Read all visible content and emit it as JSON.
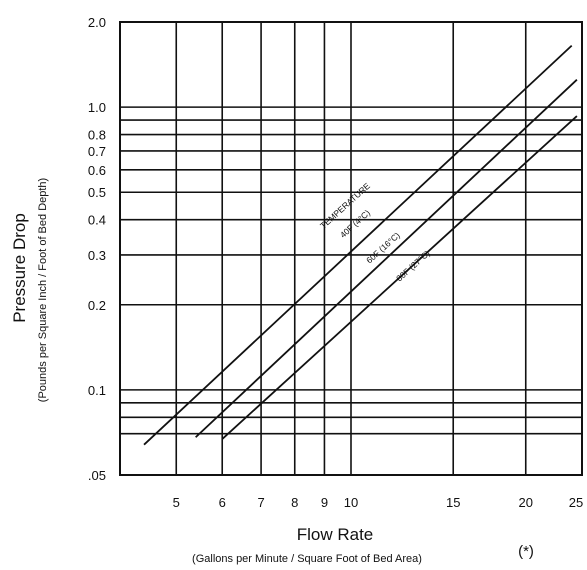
{
  "chart_data": {
    "type": "line",
    "x_scale": "log",
    "y_scale": "log",
    "xlim": [
      4,
      25
    ],
    "ylim": [
      0.05,
      2.0
    ],
    "x_ticks": [
      {
        "v": 5,
        "label": "5"
      },
      {
        "v": 6,
        "label": "6"
      },
      {
        "v": 7,
        "label": "7"
      },
      {
        "v": 8,
        "label": "8"
      },
      {
        "v": 9,
        "label": "9"
      },
      {
        "v": 10,
        "label": "10"
      },
      {
        "v": 15,
        "label": "15"
      },
      {
        "v": 20,
        "label": "20"
      },
      {
        "v": 25,
        "label": "25"
      }
    ],
    "y_ticks": [
      {
        "v": 0.05,
        "label": ".05"
      },
      {
        "v": 0.1,
        "label": "0.1"
      },
      {
        "v": 0.2,
        "label": "0.2"
      },
      {
        "v": 0.3,
        "label": "0.3"
      },
      {
        "v": 0.4,
        "label": "0.4"
      },
      {
        "v": 0.5,
        "label": "0.5"
      },
      {
        "v": 0.6,
        "label": "0.6"
      },
      {
        "v": 0.7,
        "label": "0.7"
      },
      {
        "v": 0.8,
        "label": "0.8"
      },
      {
        "v": 1.0,
        "label": "1.0"
      },
      {
        "v": 2.0,
        "label": "2.0"
      }
    ],
    "xlabel": "Flow Rate",
    "xlabel_sub": "(Gallons per Minute / Square Foot of Bed Area)",
    "ylabel": "Pressure Drop",
    "ylabel_sub": "(Pounds per Square Inch / Foot of Bed Depth)",
    "footnote": "(*)",
    "annotation": "TEMPERATURE",
    "grid": true,
    "series": [
      {
        "name": "40F (4°C)",
        "x": [
          4.4,
          24.0
        ],
        "y": [
          0.064,
          1.65
        ]
      },
      {
        "name": "60F (16°C)",
        "x": [
          5.4,
          24.5
        ],
        "y": [
          0.068,
          1.25
        ]
      },
      {
        "name": "80F (27°C)",
        "x": [
          6.0,
          24.5
        ],
        "y": [
          0.067,
          0.93
        ]
      }
    ]
  }
}
